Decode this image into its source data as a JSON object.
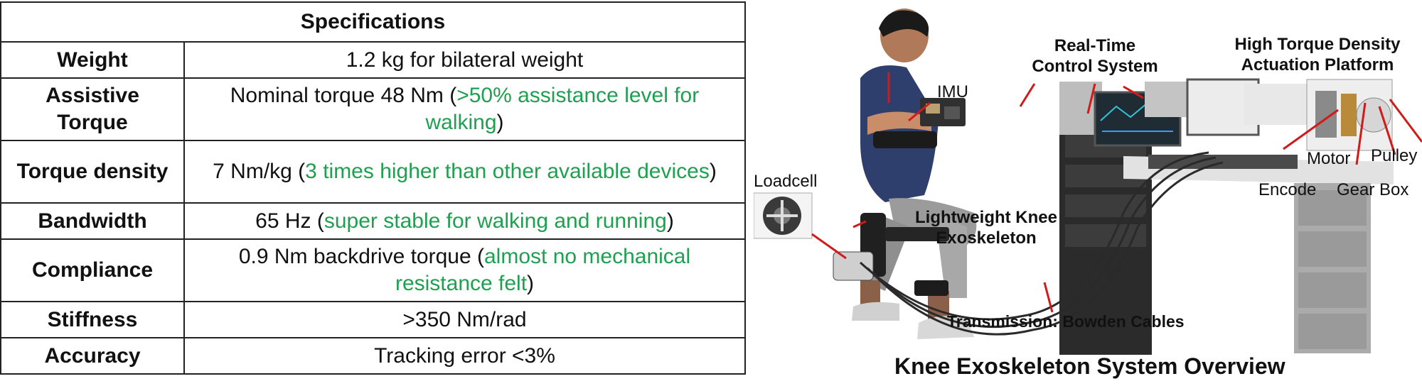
{
  "table": {
    "header": "Specifications",
    "rows": [
      {
        "key": "Weight",
        "value": "1.2 kg for bilateral weight",
        "highlight": ""
      },
      {
        "key": "Assistive Torque",
        "value": "Nominal torque 48 Nm (",
        "highlight": ">50% assistance level for walking",
        "tail": ")"
      },
      {
        "key": "Torque density",
        "value": "7 Nm/kg (",
        "highlight": "3 times higher than other available devices",
        "tail": ")"
      },
      {
        "key": "Bandwidth",
        "value": "65 Hz (",
        "highlight": "super stable for walking and running",
        "tail": ")"
      },
      {
        "key": "Compliance",
        "value": "0.9 Nm backdrive torque (",
        "highlight": "almost no mechanical resistance felt",
        "tail": ")"
      },
      {
        "key": "Stiffness",
        "value": ">350 Nm/rad",
        "highlight": ""
      },
      {
        "key": "Accuracy",
        "value": "Tracking error <3%",
        "highlight": ""
      }
    ]
  },
  "diagram": {
    "labels": {
      "imu": "IMU",
      "loadcell": "Loadcell",
      "knee_exo": "Lightweight Knee Exoskeleton",
      "control": "Real-Time Control System",
      "platform": "High Torque Density Actuation Platform",
      "motor": "Motor",
      "pulley": "Pulley",
      "encode": "Encode",
      "gearbox": "Gear Box",
      "transmission": "Transmission: Bowden Cables"
    },
    "caption": "Knee Exoskeleton System Overview",
    "colors": {
      "callout": "#d11a1a",
      "highlight": "#1fa050"
    }
  }
}
